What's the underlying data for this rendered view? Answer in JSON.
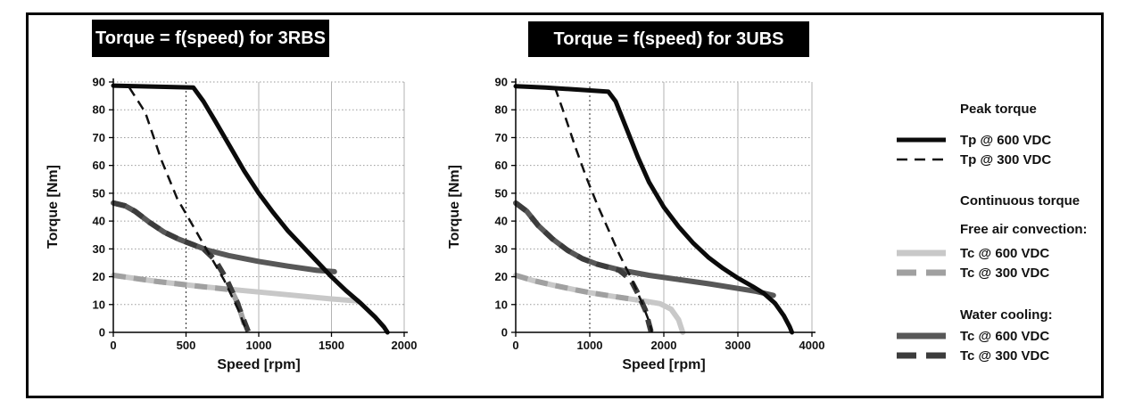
{
  "figure": {
    "background": "#ffffff",
    "border_color": "#000000"
  },
  "chart_data": [
    {
      "type": "line",
      "title": "Torque = f(speed) for 3RBS",
      "xlabel": "Speed [rpm]",
      "ylabel": "Torque [Nm]",
      "xlim": [
        0,
        2000
      ],
      "ylim": [
        0,
        90
      ],
      "xticks": [
        0,
        500,
        1000,
        1500,
        2000
      ],
      "yticks": [
        0,
        10,
        20,
        30,
        40,
        50,
        60,
        70,
        80,
        90
      ],
      "grid": true,
      "highlight_xline": 500,
      "series": [
        {
          "name": "Tc @ 600 VDC (free air convection)",
          "color": "#c8c8c8",
          "width": 6,
          "dash": null,
          "points": [
            [
              0,
              20.5
            ],
            [
              300,
              18.3
            ],
            [
              600,
              16.5
            ],
            [
              900,
              15
            ],
            [
              1200,
              13.5
            ],
            [
              1500,
              12
            ],
            [
              1680,
              11.3
            ]
          ]
        },
        {
          "name": "Tc @ 300 VDC (free air convection)",
          "color": "#a0a0a0",
          "width": 6,
          "dash": "14,9",
          "points": [
            [
              0,
              20.5
            ],
            [
              300,
              18.3
            ],
            [
              600,
              16.5
            ],
            [
              810,
              15.3
            ],
            [
              860,
              10
            ],
            [
              900,
              3
            ],
            [
              910,
              0
            ]
          ]
        },
        {
          "name": "Tc @ 600 VDC (water cooling)",
          "color": "#585858",
          "width": 6,
          "dash": null,
          "points": [
            [
              0,
              46.5
            ],
            [
              80,
              45.5
            ],
            [
              150,
              43.5
            ],
            [
              250,
              39.5
            ],
            [
              350,
              36
            ],
            [
              450,
              33.5
            ],
            [
              550,
              31.5
            ],
            [
              650,
              29.5
            ],
            [
              800,
              27.5
            ],
            [
              1000,
              25.5
            ],
            [
              1200,
              23.8
            ],
            [
              1400,
              22.3
            ],
            [
              1520,
              21.8
            ]
          ]
        },
        {
          "name": "Tc @ 300 VDC (water cooling)",
          "color": "#3c3c3c",
          "width": 6,
          "dash": "14,9",
          "points": [
            [
              0,
              46.5
            ],
            [
              80,
              45.5
            ],
            [
              150,
              43.5
            ],
            [
              250,
              39.5
            ],
            [
              350,
              36
            ],
            [
              450,
              33.5
            ],
            [
              550,
              31.5
            ],
            [
              620,
              30
            ],
            [
              700,
              26
            ],
            [
              780,
              19
            ],
            [
              850,
              11
            ],
            [
              900,
              4
            ],
            [
              930,
              0
            ]
          ]
        },
        {
          "name": "Tp @ 300 VDC",
          "color": "#111111",
          "width": 2.5,
          "dash": "11,7",
          "points": [
            [
              110,
              88
            ],
            [
              220,
              79
            ],
            [
              330,
              62
            ],
            [
              440,
              48
            ],
            [
              540,
              39
            ],
            [
              650,
              29
            ],
            [
              760,
              19
            ],
            [
              860,
              8
            ],
            [
              920,
              0
            ]
          ]
        },
        {
          "name": "Tp @ 600 VDC",
          "color": "#0b0b0b",
          "width": 5,
          "dash": null,
          "points": [
            [
              0,
              88.7
            ],
            [
              550,
              88
            ],
            [
              620,
              83
            ],
            [
              700,
              76
            ],
            [
              800,
              67
            ],
            [
              900,
              58
            ],
            [
              1000,
              50
            ],
            [
              1100,
              43
            ],
            [
              1200,
              36.5
            ],
            [
              1300,
              31
            ],
            [
              1400,
              25.5
            ],
            [
              1500,
              20
            ],
            [
              1600,
              15
            ],
            [
              1700,
              10.5
            ],
            [
              1800,
              5.5
            ],
            [
              1860,
              2
            ],
            [
              1885,
              0
            ]
          ]
        }
      ]
    },
    {
      "type": "line",
      "title": "Torque = f(speed) for 3UBS",
      "xlabel": "Speed [rpm]",
      "ylabel": "Torque [Nm]",
      "xlim": [
        0,
        4000
      ],
      "ylim": [
        0,
        90
      ],
      "xticks": [
        0,
        1000,
        2000,
        3000,
        4000
      ],
      "yticks": [
        0,
        10,
        20,
        30,
        40,
        50,
        60,
        70,
        80,
        90
      ],
      "grid": true,
      "highlight_xline": 1000,
      "series": [
        {
          "name": "Tc @ 600 VDC (free air convection)",
          "color": "#c8c8c8",
          "width": 6,
          "dash": null,
          "points": [
            [
              0,
              20.5
            ],
            [
              250,
              18.5
            ],
            [
              500,
              17
            ],
            [
              800,
              15.3
            ],
            [
              1000,
              14.3
            ],
            [
              1300,
              13
            ],
            [
              1600,
              11.8
            ],
            [
              1800,
              11
            ],
            [
              1950,
              10.3
            ],
            [
              2100,
              8.3
            ],
            [
              2200,
              4.5
            ],
            [
              2255,
              0
            ]
          ]
        },
        {
          "name": "Tc @ 300 VDC (free air convection)",
          "color": "#a0a0a0",
          "width": 6,
          "dash": "14,9",
          "points": [
            [
              0,
              20.5
            ],
            [
              250,
              18.5
            ],
            [
              500,
              17
            ],
            [
              800,
              15.3
            ],
            [
              1000,
              14.3
            ],
            [
              1300,
              13
            ],
            [
              1500,
              12.2
            ],
            [
              1630,
              11.7
            ]
          ]
        },
        {
          "name": "Tc @ 600 VDC (water cooling)",
          "color": "#585858",
          "width": 6,
          "dash": null,
          "points": [
            [
              0,
              46.5
            ],
            [
              150,
              43.5
            ],
            [
              300,
              38.5
            ],
            [
              500,
              33.5
            ],
            [
              700,
              29.5
            ],
            [
              900,
              26.5
            ],
            [
              1100,
              24.5
            ],
            [
              1400,
              22.5
            ],
            [
              1800,
              20.5
            ],
            [
              2200,
              19
            ],
            [
              2600,
              17.5
            ],
            [
              3000,
              15.8
            ],
            [
              3250,
              14.7
            ],
            [
              3480,
              13.3
            ]
          ]
        },
        {
          "name": "Tc @ 300 VDC (water cooling)",
          "color": "#3c3c3c",
          "width": 6,
          "dash": "14,9",
          "points": [
            [
              0,
              46.5
            ],
            [
              150,
              43.5
            ],
            [
              300,
              38.5
            ],
            [
              500,
              33.5
            ],
            [
              700,
              29.5
            ],
            [
              900,
              26.5
            ],
            [
              1100,
              24.5
            ],
            [
              1400,
              22.3
            ],
            [
              1550,
              19
            ],
            [
              1650,
              14
            ],
            [
              1750,
              8
            ],
            [
              1830,
              0
            ]
          ]
        },
        {
          "name": "Tp @ 300 VDC",
          "color": "#111111",
          "width": 2.5,
          "dash": "11,7",
          "points": [
            [
              530,
              88
            ],
            [
              650,
              79
            ],
            [
              800,
              67
            ],
            [
              950,
              56
            ],
            [
              1100,
              46
            ],
            [
              1250,
              37
            ],
            [
              1400,
              28
            ],
            [
              1550,
              20
            ],
            [
              1700,
              11
            ],
            [
              1800,
              4
            ],
            [
              1840,
              0
            ]
          ]
        },
        {
          "name": "Tp @ 600 VDC",
          "color": "#0b0b0b",
          "width": 5,
          "dash": null,
          "points": [
            [
              0,
              88.5
            ],
            [
              400,
              88
            ],
            [
              800,
              87.3
            ],
            [
              1250,
              86.5
            ],
            [
              1350,
              83
            ],
            [
              1500,
              73
            ],
            [
              1650,
              63
            ],
            [
              1800,
              54
            ],
            [
              2000,
              45
            ],
            [
              2200,
              38
            ],
            [
              2400,
              32
            ],
            [
              2600,
              27
            ],
            [
              2800,
              23
            ],
            [
              3000,
              19.5
            ],
            [
              3200,
              16.5
            ],
            [
              3350,
              14
            ],
            [
              3500,
              10.5
            ],
            [
              3620,
              6
            ],
            [
              3700,
              2
            ],
            [
              3730,
              0
            ]
          ]
        }
      ]
    }
  ],
  "legend": {
    "entries": [
      {
        "kind": "header",
        "label": "Peak torque"
      },
      {
        "kind": "item",
        "label": "Tp @ 600 VDC",
        "swatch": {
          "color": "#0b0b0b",
          "thickness": 5,
          "dash": null
        }
      },
      {
        "kind": "item",
        "label": "Tp @ 300 VDC",
        "swatch": {
          "color": "#111111",
          "thickness": 2.5,
          "dash": "12,8"
        }
      },
      {
        "kind": "header",
        "label": "Continuous torque"
      },
      {
        "kind": "header",
        "label": "Free air convection:"
      },
      {
        "kind": "item",
        "label": "Tc @ 600 VDC",
        "swatch": {
          "color": "#c8c8c8",
          "thickness": 7,
          "dash": null
        }
      },
      {
        "kind": "item",
        "label": "Tc @ 300 VDC",
        "swatch": {
          "color": "#a0a0a0",
          "thickness": 7,
          "dash": "22,11"
        }
      },
      {
        "kind": "header",
        "label": "Water cooling:"
      },
      {
        "kind": "item",
        "label": "Tc @ 600 VDC",
        "swatch": {
          "color": "#585858",
          "thickness": 7,
          "dash": null
        }
      },
      {
        "kind": "item",
        "label": "Tc @ 300 VDC",
        "swatch": {
          "color": "#3c3c3c",
          "thickness": 7,
          "dash": "22,11"
        }
      }
    ]
  }
}
